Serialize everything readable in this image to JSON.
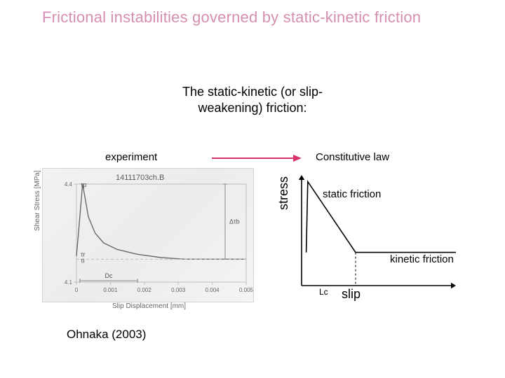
{
  "title": "Frictional instabilities governed by static-kinetic friction",
  "subtitle_line1": "The static-kinetic (or slip-",
  "subtitle_line2": "weakening) friction:",
  "labels": {
    "experiment": "experiment",
    "constitutive": "Constitutive law",
    "static": "static friction",
    "kinetic": "kinetic friction",
    "lc": "Lc",
    "slip": "slip",
    "stress": "stress"
  },
  "citation": "Ohnaka (2003)",
  "arrow": {
    "color": "#d6336c",
    "width": 2
  },
  "experiment_plot": {
    "type": "line",
    "source_label": "14111703ch.B",
    "xlabel": "Slip Displacement  [mm]",
    "ylabel": "Shear Stress  [MPa]",
    "xlim": [
      0,
      0.005
    ],
    "ylim": [
      4.1,
      4.4
    ],
    "xtick_labels": [
      "0",
      "0.001",
      "0.002",
      "0.003",
      "0.004",
      "0.005"
    ],
    "ytick_labels": [
      "4.1",
      "4.4"
    ],
    "line_color": "#6a6a6a",
    "line_width": 1.4,
    "grid_color": "#bfbfbf",
    "background_color": "#f0f0f0",
    "dc_marker": "Dc",
    "dtau_marker": "Δτb",
    "tau_peak_marker": "τp",
    "tau_init_marker": "τi",
    "tau_resid_marker": "τr",
    "data": {
      "x": [
        0.0,
        0.0001,
        0.00018,
        0.00025,
        0.00035,
        0.00055,
        0.0008,
        0.0012,
        0.0018,
        0.0025,
        0.0032,
        0.004,
        0.005
      ],
      "y": [
        4.18,
        4.3,
        4.4,
        4.36,
        4.3,
        4.25,
        4.22,
        4.2,
        4.185,
        4.175,
        4.17,
        4.17,
        4.17
      ]
    }
  },
  "constitutive_diagram": {
    "type": "line",
    "axis_color": "#000000",
    "axis_width": 1.6,
    "curve_color": "#000000",
    "curve_width": 1.6,
    "dashed_color": "#000000",
    "dashed_pattern": "3,3",
    "background_color": "#ffffff",
    "ylabel": "stress",
    "xlabel": "slip",
    "xlim": [
      0,
      10
    ],
    "ylim": [
      0,
      10
    ],
    "points": {
      "x": [
        0.3,
        0.4,
        3.5,
        10.0
      ],
      "y": [
        3.0,
        9.4,
        3.0,
        3.0
      ]
    },
    "lc_x": 3.5,
    "arrowhead_size": 7
  },
  "colors": {
    "title": "#d48fb0",
    "text": "#000000",
    "exp_gray": "#6a6a6a"
  },
  "fonts": {
    "title_pt": 22,
    "subtitle_pt": 18,
    "label_pt": 15,
    "axis_pt": 18,
    "small_pt": 11
  }
}
